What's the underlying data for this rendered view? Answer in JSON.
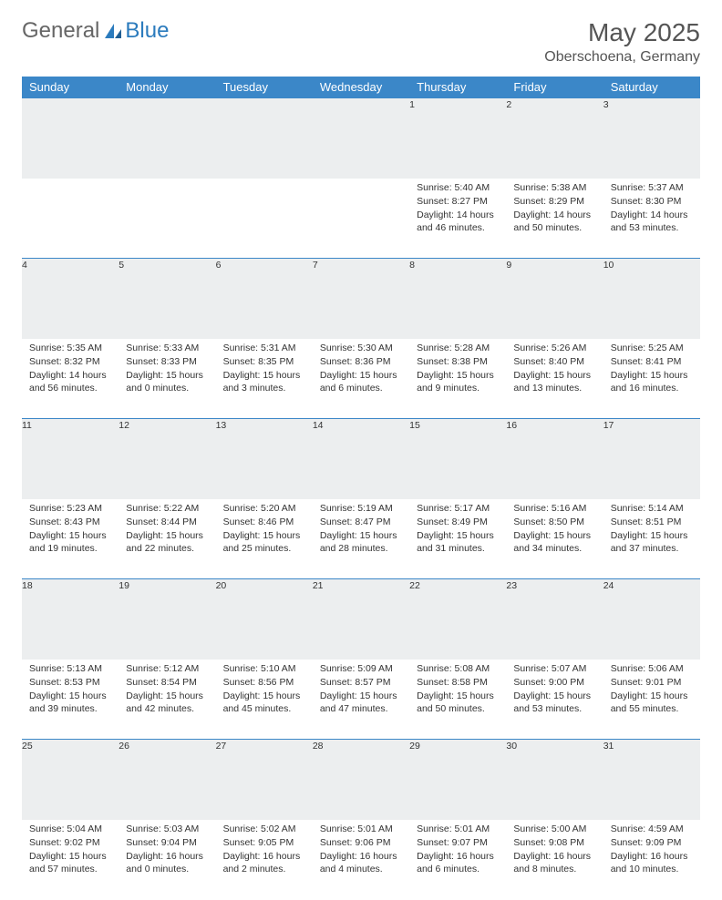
{
  "logo": {
    "general": "General",
    "blue": "Blue"
  },
  "title": "May 2025",
  "location": "Oberschoena, Germany",
  "weekdays": [
    "Sunday",
    "Monday",
    "Tuesday",
    "Wednesday",
    "Thursday",
    "Friday",
    "Saturday"
  ],
  "colors": {
    "header_bg": "#3b87c8",
    "header_text": "#ffffff",
    "daynum_bg": "#eceeef",
    "row_border": "#3b87c8",
    "logo_blue": "#2b7bbd",
    "text": "#333333"
  },
  "weeks": [
    [
      {
        "n": "",
        "sr": "",
        "ss": "",
        "dl": ""
      },
      {
        "n": "",
        "sr": "",
        "ss": "",
        "dl": ""
      },
      {
        "n": "",
        "sr": "",
        "ss": "",
        "dl": ""
      },
      {
        "n": "",
        "sr": "",
        "ss": "",
        "dl": ""
      },
      {
        "n": "1",
        "sr": "Sunrise: 5:40 AM",
        "ss": "Sunset: 8:27 PM",
        "dl": "Daylight: 14 hours and 46 minutes."
      },
      {
        "n": "2",
        "sr": "Sunrise: 5:38 AM",
        "ss": "Sunset: 8:29 PM",
        "dl": "Daylight: 14 hours and 50 minutes."
      },
      {
        "n": "3",
        "sr": "Sunrise: 5:37 AM",
        "ss": "Sunset: 8:30 PM",
        "dl": "Daylight: 14 hours and 53 minutes."
      }
    ],
    [
      {
        "n": "4",
        "sr": "Sunrise: 5:35 AM",
        "ss": "Sunset: 8:32 PM",
        "dl": "Daylight: 14 hours and 56 minutes."
      },
      {
        "n": "5",
        "sr": "Sunrise: 5:33 AM",
        "ss": "Sunset: 8:33 PM",
        "dl": "Daylight: 15 hours and 0 minutes."
      },
      {
        "n": "6",
        "sr": "Sunrise: 5:31 AM",
        "ss": "Sunset: 8:35 PM",
        "dl": "Daylight: 15 hours and 3 minutes."
      },
      {
        "n": "7",
        "sr": "Sunrise: 5:30 AM",
        "ss": "Sunset: 8:36 PM",
        "dl": "Daylight: 15 hours and 6 minutes."
      },
      {
        "n": "8",
        "sr": "Sunrise: 5:28 AM",
        "ss": "Sunset: 8:38 PM",
        "dl": "Daylight: 15 hours and 9 minutes."
      },
      {
        "n": "9",
        "sr": "Sunrise: 5:26 AM",
        "ss": "Sunset: 8:40 PM",
        "dl": "Daylight: 15 hours and 13 minutes."
      },
      {
        "n": "10",
        "sr": "Sunrise: 5:25 AM",
        "ss": "Sunset: 8:41 PM",
        "dl": "Daylight: 15 hours and 16 minutes."
      }
    ],
    [
      {
        "n": "11",
        "sr": "Sunrise: 5:23 AM",
        "ss": "Sunset: 8:43 PM",
        "dl": "Daylight: 15 hours and 19 minutes."
      },
      {
        "n": "12",
        "sr": "Sunrise: 5:22 AM",
        "ss": "Sunset: 8:44 PM",
        "dl": "Daylight: 15 hours and 22 minutes."
      },
      {
        "n": "13",
        "sr": "Sunrise: 5:20 AM",
        "ss": "Sunset: 8:46 PM",
        "dl": "Daylight: 15 hours and 25 minutes."
      },
      {
        "n": "14",
        "sr": "Sunrise: 5:19 AM",
        "ss": "Sunset: 8:47 PM",
        "dl": "Daylight: 15 hours and 28 minutes."
      },
      {
        "n": "15",
        "sr": "Sunrise: 5:17 AM",
        "ss": "Sunset: 8:49 PM",
        "dl": "Daylight: 15 hours and 31 minutes."
      },
      {
        "n": "16",
        "sr": "Sunrise: 5:16 AM",
        "ss": "Sunset: 8:50 PM",
        "dl": "Daylight: 15 hours and 34 minutes."
      },
      {
        "n": "17",
        "sr": "Sunrise: 5:14 AM",
        "ss": "Sunset: 8:51 PM",
        "dl": "Daylight: 15 hours and 37 minutes."
      }
    ],
    [
      {
        "n": "18",
        "sr": "Sunrise: 5:13 AM",
        "ss": "Sunset: 8:53 PM",
        "dl": "Daylight: 15 hours and 39 minutes."
      },
      {
        "n": "19",
        "sr": "Sunrise: 5:12 AM",
        "ss": "Sunset: 8:54 PM",
        "dl": "Daylight: 15 hours and 42 minutes."
      },
      {
        "n": "20",
        "sr": "Sunrise: 5:10 AM",
        "ss": "Sunset: 8:56 PM",
        "dl": "Daylight: 15 hours and 45 minutes."
      },
      {
        "n": "21",
        "sr": "Sunrise: 5:09 AM",
        "ss": "Sunset: 8:57 PM",
        "dl": "Daylight: 15 hours and 47 minutes."
      },
      {
        "n": "22",
        "sr": "Sunrise: 5:08 AM",
        "ss": "Sunset: 8:58 PM",
        "dl": "Daylight: 15 hours and 50 minutes."
      },
      {
        "n": "23",
        "sr": "Sunrise: 5:07 AM",
        "ss": "Sunset: 9:00 PM",
        "dl": "Daylight: 15 hours and 53 minutes."
      },
      {
        "n": "24",
        "sr": "Sunrise: 5:06 AM",
        "ss": "Sunset: 9:01 PM",
        "dl": "Daylight: 15 hours and 55 minutes."
      }
    ],
    [
      {
        "n": "25",
        "sr": "Sunrise: 5:04 AM",
        "ss": "Sunset: 9:02 PM",
        "dl": "Daylight: 15 hours and 57 minutes."
      },
      {
        "n": "26",
        "sr": "Sunrise: 5:03 AM",
        "ss": "Sunset: 9:04 PM",
        "dl": "Daylight: 16 hours and 0 minutes."
      },
      {
        "n": "27",
        "sr": "Sunrise: 5:02 AM",
        "ss": "Sunset: 9:05 PM",
        "dl": "Daylight: 16 hours and 2 minutes."
      },
      {
        "n": "28",
        "sr": "Sunrise: 5:01 AM",
        "ss": "Sunset: 9:06 PM",
        "dl": "Daylight: 16 hours and 4 minutes."
      },
      {
        "n": "29",
        "sr": "Sunrise: 5:01 AM",
        "ss": "Sunset: 9:07 PM",
        "dl": "Daylight: 16 hours and 6 minutes."
      },
      {
        "n": "30",
        "sr": "Sunrise: 5:00 AM",
        "ss": "Sunset: 9:08 PM",
        "dl": "Daylight: 16 hours and 8 minutes."
      },
      {
        "n": "31",
        "sr": "Sunrise: 4:59 AM",
        "ss": "Sunset: 9:09 PM",
        "dl": "Daylight: 16 hours and 10 minutes."
      }
    ]
  ]
}
